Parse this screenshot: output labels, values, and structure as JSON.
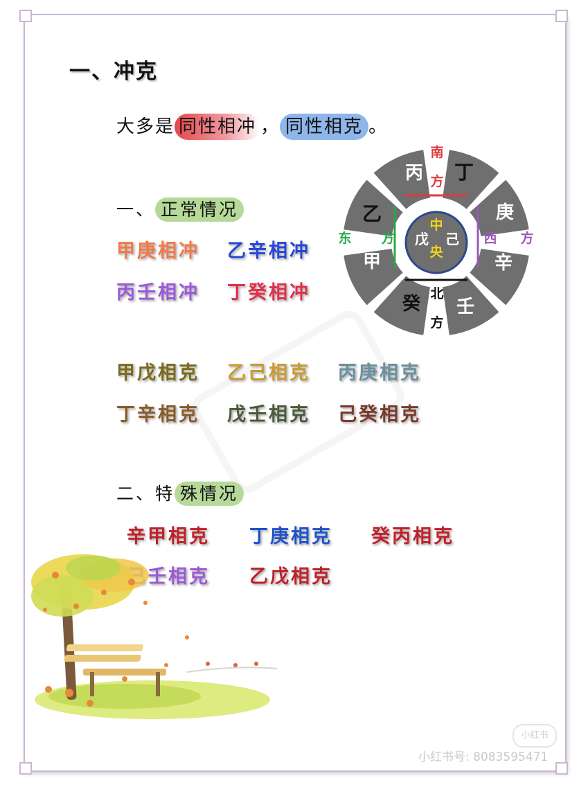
{
  "heading": "一、冲克",
  "intro": {
    "prefix": "大多是",
    "hl1": "同性相冲",
    "sep": "，",
    "hl2": "同性相克",
    "suffix": "。"
  },
  "section_normal": {
    "num": "一、",
    "pre": "",
    "hl": "正常情况"
  },
  "chong_pairs": [
    {
      "text": "甲庚相冲",
      "color": "#f07a4a"
    },
    {
      "text": "乙辛相冲",
      "color": "#2546d6"
    },
    {
      "text": "丙壬相冲",
      "color": "#9b59d8"
    },
    {
      "text": "丁癸相冲",
      "color": "#e0304a"
    }
  ],
  "ke_pairs": [
    {
      "text": "甲戊相克",
      "color": "#7a6a1a"
    },
    {
      "text": "乙己相克",
      "color": "#c99a2e"
    },
    {
      "text": "丙庚相克",
      "color": "#6a8fa0"
    },
    {
      "text": "丁辛相克",
      "color": "#8a5a2a"
    },
    {
      "text": "戊壬相克",
      "color": "#4a5a3a"
    },
    {
      "text": "己癸相克",
      "color": "#7a3a2a"
    }
  ],
  "section_special": {
    "num": "二、",
    "pre": "特",
    "hl": "殊情况"
  },
  "special_pairs": [
    {
      "text": "辛甲相克",
      "color": "#c0202a"
    },
    {
      "text": "丁庚相克",
      "color": "#1f52c8"
    },
    {
      "text": "癸丙相克",
      "color": "#c0202a"
    },
    {
      "text": "己壬相克",
      "color": "#9b59d8"
    },
    {
      "text": "乙戊相克",
      "color": "#c0202a"
    }
  ],
  "wheel": {
    "south": {
      "top": "南",
      "bottom": "方",
      "color": "#e03a3a"
    },
    "east": {
      "left": "东",
      "right": "方",
      "color": "#2aa84a"
    },
    "west": {
      "left": "西",
      "right": "方",
      "color": "#9b59b6"
    },
    "north": {
      "top": "北",
      "bottom": "方",
      "color": "#111111"
    },
    "center": {
      "a": "戊",
      "b": "中",
      "c": "央",
      "d": "己",
      "hl_color": "#f2d21a"
    },
    "stems": {
      "bing": "丙",
      "ding": "丁",
      "geng": "庚",
      "xin": "辛",
      "ren": "壬",
      "gui": "癸",
      "jia": "甲",
      "yi": "乙"
    },
    "colors": {
      "segment": "#6f6f6f",
      "center": "#6f6f6f",
      "center_ring": "#2a4a8a",
      "gap_line_s": "#e03a3a",
      "gap_line_e": "#2aa84a",
      "gap_line_w": "#9b59b6",
      "gap_line_n": "#111111"
    }
  },
  "watermark": "小红书号: 8083595471",
  "logo_text": "小红书"
}
